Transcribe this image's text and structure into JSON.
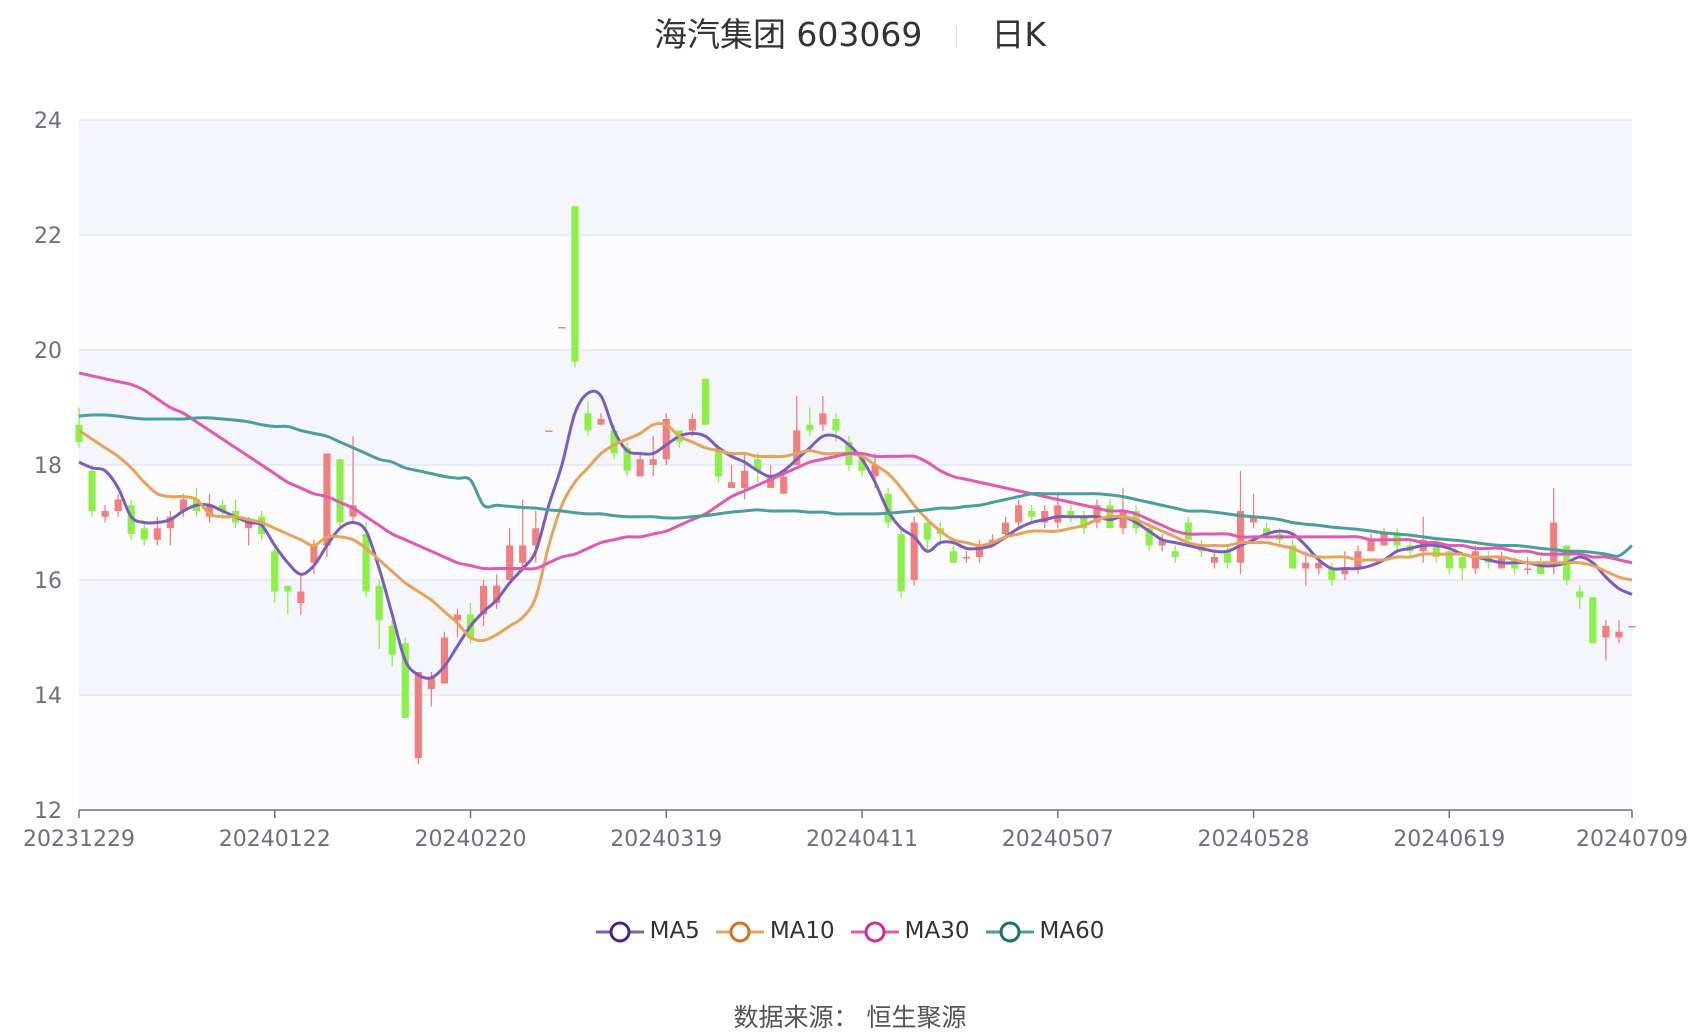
{
  "title": {
    "name": "海汽集团 603069",
    "period": "日K"
  },
  "source_text": "数据来源：  恒生聚源",
  "colors": {
    "up": "#f08080",
    "down": "#8cf048",
    "grid": "#dfe3f3",
    "band": "#f5f6fb",
    "MA5": "#7b5dbd",
    "MA10": "#e6a35a",
    "MA30": "#e05ab0",
    "MA60": "#4a9e9e"
  },
  "chart_data": {
    "type": "candlestick",
    "ylim": [
      12,
      24
    ],
    "yticks": [
      12,
      14,
      16,
      18,
      20,
      22,
      24
    ],
    "xtick_labels": [
      "20231229",
      "20240122",
      "20240220",
      "20240319",
      "20240411",
      "20240507",
      "20240528",
      "20240619",
      "20240709"
    ],
    "xtick_index": [
      0,
      15,
      30,
      45,
      60,
      75,
      90,
      105,
      119
    ],
    "n_days": 120,
    "candles": [
      [
        18.7,
        18.4,
        19.0,
        18.3
      ],
      [
        17.9,
        17.2,
        18.0,
        17.1
      ],
      [
        17.1,
        17.2,
        17.3,
        17.0
      ],
      [
        17.2,
        17.4,
        17.5,
        17.1
      ],
      [
        17.3,
        16.8,
        17.4,
        16.7
      ],
      [
        16.9,
        16.7,
        17.0,
        16.6
      ],
      [
        16.7,
        16.9,
        17.1,
        16.6
      ],
      [
        16.9,
        17.1,
        17.2,
        16.6
      ],
      [
        17.2,
        17.4,
        17.5,
        17.1
      ],
      [
        17.4,
        17.2,
        17.6,
        17.1
      ],
      [
        17.1,
        17.3,
        17.5,
        17.0
      ],
      [
        17.3,
        17.2,
        17.4,
        17.1
      ],
      [
        17.2,
        17.0,
        17.4,
        16.9
      ],
      [
        16.9,
        17.0,
        17.1,
        16.6
      ],
      [
        17.1,
        16.8,
        17.2,
        16.7
      ],
      [
        16.5,
        15.8,
        16.6,
        15.6
      ],
      [
        15.9,
        15.8,
        15.9,
        15.4
      ],
      [
        15.6,
        15.8,
        16.1,
        15.4
      ],
      [
        16.3,
        16.6,
        16.7,
        16.1
      ],
      [
        16.6,
        18.2,
        18.2,
        16.4
      ],
      [
        18.1,
        17.0,
        18.1,
        16.9
      ],
      [
        17.1,
        17.3,
        18.5,
        17.0
      ],
      [
        16.8,
        15.8,
        17.0,
        15.7
      ],
      [
        15.9,
        15.3,
        16.0,
        14.8
      ],
      [
        15.2,
        14.7,
        15.3,
        14.5
      ],
      [
        14.9,
        13.6,
        15.0,
        13.6
      ],
      [
        12.9,
        14.4,
        14.4,
        12.8
      ],
      [
        14.1,
        14.3,
        14.4,
        13.8
      ],
      [
        14.2,
        15.0,
        15.1,
        14.2
      ],
      [
        15.3,
        15.4,
        15.5,
        15.0
      ],
      [
        15.4,
        15.0,
        15.6,
        14.9
      ],
      [
        15.4,
        15.9,
        16.0,
        15.2
      ],
      [
        15.6,
        15.9,
        16.1,
        15.5
      ],
      [
        16.0,
        16.6,
        16.9,
        16.0
      ],
      [
        16.3,
        16.6,
        17.4,
        16.2
      ],
      [
        16.6,
        16.9,
        17.2,
        16.3
      ],
      [
        18.6,
        18.6,
        18.6,
        18.6
      ],
      [
        20.4,
        20.4,
        20.4,
        20.4
      ],
      [
        22.5,
        19.8,
        22.5,
        19.7
      ],
      [
        18.9,
        18.6,
        19.1,
        18.5
      ],
      [
        18.7,
        18.8,
        18.9,
        18.7
      ],
      [
        18.6,
        18.2,
        18.7,
        18.1
      ],
      [
        18.3,
        17.9,
        18.4,
        17.8
      ],
      [
        17.8,
        18.1,
        18.2,
        17.8
      ],
      [
        18.0,
        18.1,
        18.5,
        17.8
      ],
      [
        18.1,
        18.8,
        18.9,
        18.0
      ],
      [
        18.6,
        18.4,
        18.6,
        18.3
      ],
      [
        18.6,
        18.8,
        18.9,
        18.5
      ],
      [
        19.5,
        18.7,
        19.5,
        18.7
      ],
      [
        18.3,
        17.8,
        18.3,
        17.7
      ],
      [
        17.6,
        17.7,
        18.0,
        17.6
      ],
      [
        17.6,
        17.9,
        18.2,
        17.4
      ],
      [
        18.1,
        17.9,
        18.2,
        17.7
      ],
      [
        17.6,
        17.8,
        18.0,
        17.7
      ],
      [
        17.5,
        17.8,
        17.9,
        17.5
      ],
      [
        18.0,
        18.6,
        19.2,
        18.0
      ],
      [
        18.7,
        18.6,
        19.0,
        18.5
      ],
      [
        18.7,
        18.9,
        19.2,
        18.6
      ],
      [
        18.8,
        18.6,
        18.9,
        18.4
      ],
      [
        18.4,
        18.0,
        18.5,
        17.9
      ],
      [
        18.1,
        17.9,
        18.2,
        17.8
      ],
      [
        17.8,
        18.0,
        18.2,
        17.6
      ],
      [
        17.5,
        17.0,
        17.6,
        16.9
      ],
      [
        16.8,
        15.8,
        16.9,
        15.7
      ],
      [
        16.0,
        17.0,
        17.1,
        15.9
      ],
      [
        17.0,
        16.7,
        17.1,
        16.5
      ],
      [
        16.9,
        16.8,
        17.0,
        16.6
      ],
      [
        16.5,
        16.3,
        16.6,
        16.3
      ],
      [
        16.4,
        16.4,
        16.5,
        16.3
      ],
      [
        16.4,
        16.6,
        16.7,
        16.3
      ],
      [
        16.6,
        16.7,
        16.8,
        16.6
      ],
      [
        16.8,
        17.0,
        17.1,
        16.7
      ],
      [
        17.0,
        17.3,
        17.4,
        16.9
      ],
      [
        17.2,
        17.1,
        17.3,
        17.0
      ],
      [
        17.0,
        17.2,
        17.3,
        16.9
      ],
      [
        17.0,
        17.3,
        17.5,
        16.9
      ],
      [
        17.2,
        17.1,
        17.3,
        17.0
      ],
      [
        17.1,
        16.9,
        17.2,
        16.8
      ],
      [
        17.0,
        17.3,
        17.4,
        16.9
      ],
      [
        17.3,
        16.9,
        17.4,
        16.9
      ],
      [
        16.9,
        17.2,
        17.6,
        16.8
      ],
      [
        17.2,
        16.9,
        17.3,
        16.8
      ],
      [
        16.9,
        16.6,
        17.0,
        16.5
      ],
      [
        16.6,
        16.7,
        16.8,
        16.5
      ],
      [
        16.5,
        16.4,
        16.6,
        16.3
      ],
      [
        17.0,
        16.7,
        17.1,
        16.6
      ],
      [
        16.6,
        16.5,
        16.7,
        16.4
      ],
      [
        16.3,
        16.4,
        16.5,
        16.2
      ],
      [
        16.5,
        16.3,
        16.6,
        16.2
      ],
      [
        16.3,
        17.2,
        17.9,
        16.1
      ],
      [
        17.0,
        17.1,
        17.5,
        16.9
      ],
      [
        16.9,
        16.8,
        17.0,
        16.7
      ],
      [
        16.8,
        16.7,
        16.9,
        16.6
      ],
      [
        16.6,
        16.2,
        16.7,
        16.2
      ],
      [
        16.2,
        16.3,
        16.5,
        15.9
      ],
      [
        16.2,
        16.3,
        16.4,
        16.1
      ],
      [
        16.2,
        16.0,
        16.3,
        15.9
      ],
      [
        16.1,
        16.2,
        16.5,
        16.0
      ],
      [
        16.2,
        16.5,
        16.6,
        16.1
      ],
      [
        16.5,
        16.7,
        16.8,
        16.5
      ],
      [
        16.6,
        16.8,
        16.9,
        16.6
      ],
      [
        16.8,
        16.6,
        16.9,
        16.5
      ],
      [
        16.6,
        16.5,
        16.7,
        16.4
      ],
      [
        16.5,
        16.7,
        17.1,
        16.3
      ],
      [
        16.6,
        16.4,
        16.7,
        16.3
      ],
      [
        16.5,
        16.2,
        16.6,
        16.1
      ],
      [
        16.4,
        16.2,
        16.5,
        16.0
      ],
      [
        16.2,
        16.5,
        16.6,
        16.1
      ],
      [
        16.4,
        16.3,
        16.5,
        16.2
      ],
      [
        16.2,
        16.4,
        16.5,
        16.2
      ],
      [
        16.3,
        16.2,
        16.4,
        16.1
      ],
      [
        16.2,
        16.2,
        16.4,
        16.1
      ],
      [
        16.3,
        16.1,
        16.4,
        16.1
      ],
      [
        16.3,
        17.0,
        17.6,
        16.1
      ],
      [
        16.6,
        16.0,
        16.6,
        15.9
      ],
      [
        15.8,
        15.7,
        15.9,
        15.5
      ],
      [
        15.7,
        14.9,
        15.7,
        14.9
      ],
      [
        15.0,
        15.2,
        15.3,
        14.6
      ],
      [
        15.0,
        15.1,
        15.3,
        14.9
      ],
      [
        15.2,
        15.2,
        15.2,
        15.2
      ]
    ],
    "series": [
      {
        "name": "MA5",
        "values": [
          18.05,
          17.95,
          17.9,
          17.6,
          17.1,
          17.0,
          17.0,
          17.05,
          17.2,
          17.3,
          17.3,
          17.2,
          17.1,
          17.0,
          16.95,
          16.6,
          16.3,
          16.1,
          16.25,
          16.6,
          16.9,
          17.0,
          16.85,
          16.2,
          15.4,
          14.6,
          14.35,
          14.3,
          14.5,
          14.85,
          15.2,
          15.45,
          15.65,
          15.95,
          16.2,
          16.5,
          17.3,
          18.0,
          18.9,
          19.25,
          19.2,
          18.6,
          18.25,
          18.2,
          18.2,
          18.35,
          18.5,
          18.55,
          18.5,
          18.3,
          18.15,
          18.05,
          17.9,
          17.8,
          17.9,
          18.1,
          18.3,
          18.5,
          18.5,
          18.35,
          18.1,
          17.7,
          17.2,
          16.9,
          16.75,
          16.5,
          16.65,
          16.65,
          16.55,
          16.55,
          16.6,
          16.75,
          16.9,
          17.0,
          17.05,
          17.1,
          17.1,
          17.1,
          17.1,
          17.05,
          17.1,
          17.0,
          16.85,
          16.7,
          16.65,
          16.6,
          16.55,
          16.5,
          16.5,
          16.6,
          16.7,
          16.8,
          16.85,
          16.8,
          16.6,
          16.35,
          16.2,
          16.2,
          16.2,
          16.25,
          16.35,
          16.5,
          16.55,
          16.6,
          16.6,
          16.55,
          16.45,
          16.4,
          16.35,
          16.3,
          16.3,
          16.3,
          16.25,
          16.25,
          16.3,
          16.4,
          16.3,
          16.05,
          15.85,
          15.75
        ]
      },
      {
        "name": "MA10",
        "values": [
          18.6,
          18.45,
          18.3,
          18.15,
          17.95,
          17.7,
          17.5,
          17.45,
          17.45,
          17.4,
          17.15,
          17.1,
          17.1,
          17.05,
          17.0,
          16.9,
          16.8,
          16.7,
          16.6,
          16.75,
          16.75,
          16.7,
          16.55,
          16.35,
          16.15,
          15.95,
          15.8,
          15.65,
          15.45,
          15.25,
          15.0,
          14.95,
          15.05,
          15.2,
          15.35,
          15.7,
          16.6,
          17.3,
          17.7,
          17.95,
          18.2,
          18.35,
          18.45,
          18.55,
          18.7,
          18.7,
          18.5,
          18.4,
          18.3,
          18.25,
          18.2,
          18.2,
          18.15,
          18.15,
          18.15,
          18.2,
          18.25,
          18.2,
          18.2,
          18.2,
          18.15,
          18.0,
          17.85,
          17.6,
          17.3,
          17.05,
          16.85,
          16.7,
          16.65,
          16.6,
          16.65,
          16.75,
          16.8,
          16.85,
          16.85,
          16.85,
          16.9,
          16.95,
          17.05,
          17.1,
          17.1,
          17.05,
          16.95,
          16.85,
          16.75,
          16.65,
          16.6,
          16.6,
          16.6,
          16.65,
          16.65,
          16.65,
          16.6,
          16.55,
          16.45,
          16.4,
          16.4,
          16.4,
          16.35,
          16.35,
          16.35,
          16.4,
          16.4,
          16.45,
          16.45,
          16.45,
          16.45,
          16.4,
          16.4,
          16.4,
          16.35,
          16.3,
          16.3,
          16.3,
          16.3,
          16.3,
          16.25,
          16.15,
          16.05,
          16.0
        ]
      },
      {
        "name": "MA30",
        "values": [
          19.6,
          19.55,
          19.5,
          19.45,
          19.4,
          19.3,
          19.15,
          19.0,
          18.9,
          18.75,
          18.6,
          18.45,
          18.3,
          18.15,
          18.0,
          17.85,
          17.7,
          17.6,
          17.5,
          17.45,
          17.35,
          17.25,
          17.1,
          16.95,
          16.8,
          16.7,
          16.6,
          16.5,
          16.4,
          16.3,
          16.25,
          16.2,
          16.2,
          16.2,
          16.2,
          16.2,
          16.3,
          16.4,
          16.45,
          16.55,
          16.65,
          16.7,
          16.75,
          16.75,
          16.8,
          16.85,
          16.95,
          17.05,
          17.15,
          17.3,
          17.45,
          17.55,
          17.65,
          17.75,
          17.85,
          17.95,
          18.05,
          18.1,
          18.15,
          18.2,
          18.2,
          18.15,
          18.15,
          18.15,
          18.15,
          18.05,
          17.9,
          17.8,
          17.75,
          17.7,
          17.65,
          17.6,
          17.55,
          17.5,
          17.45,
          17.4,
          17.35,
          17.3,
          17.25,
          17.2,
          17.2,
          17.15,
          17.05,
          16.95,
          16.85,
          16.8,
          16.8,
          16.8,
          16.8,
          16.75,
          16.75,
          16.75,
          16.75,
          16.75,
          16.75,
          16.75,
          16.75,
          16.75,
          16.75,
          16.7,
          16.7,
          16.7,
          16.7,
          16.65,
          16.65,
          16.6,
          16.6,
          16.55,
          16.55,
          16.55,
          16.5,
          16.5,
          16.45,
          16.45,
          16.45,
          16.45,
          16.4,
          16.4,
          16.35,
          16.3
        ]
      },
      {
        "name": "MA60",
        "values": [
          18.85,
          18.87,
          18.87,
          18.85,
          18.82,
          18.8,
          18.8,
          18.8,
          18.8,
          18.82,
          18.82,
          18.8,
          18.78,
          18.75,
          18.7,
          18.67,
          18.67,
          18.6,
          18.55,
          18.5,
          18.4,
          18.3,
          18.2,
          18.1,
          18.05,
          17.95,
          17.9,
          17.85,
          17.8,
          17.77,
          17.74,
          17.3,
          17.3,
          17.28,
          17.26,
          17.25,
          17.22,
          17.2,
          17.17,
          17.15,
          17.15,
          17.12,
          17.1,
          17.1,
          17.1,
          17.08,
          17.08,
          17.1,
          17.12,
          17.15,
          17.18,
          17.2,
          17.22,
          17.2,
          17.2,
          17.2,
          17.18,
          17.18,
          17.15,
          17.15,
          17.15,
          17.15,
          17.16,
          17.18,
          17.2,
          17.22,
          17.25,
          17.25,
          17.28,
          17.3,
          17.35,
          17.4,
          17.45,
          17.5,
          17.5,
          17.5,
          17.5,
          17.5,
          17.5,
          17.48,
          17.45,
          17.4,
          17.35,
          17.3,
          17.25,
          17.2,
          17.2,
          17.18,
          17.15,
          17.12,
          17.1,
          17.08,
          17.05,
          17.0,
          16.97,
          16.95,
          16.92,
          16.9,
          16.88,
          16.85,
          16.82,
          16.8,
          16.78,
          16.75,
          16.72,
          16.7,
          16.68,
          16.65,
          16.62,
          16.6,
          16.6,
          16.58,
          16.55,
          16.53,
          16.5,
          16.5,
          16.48,
          16.45,
          16.42,
          16.6
        ]
      }
    ]
  }
}
